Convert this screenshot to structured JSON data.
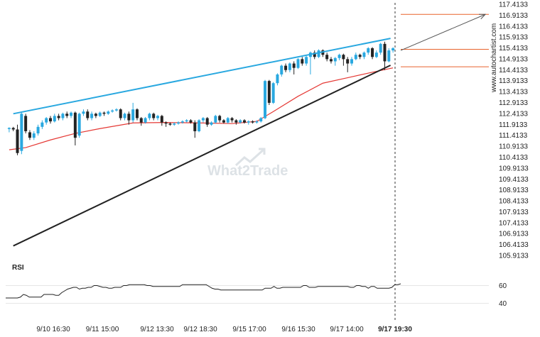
{
  "chart_data": [
    {
      "type": "candlestick",
      "y_ticks": [
        "117.4133",
        "116.9133",
        "116.4133",
        "115.9133",
        "115.4133",
        "114.9133",
        "114.4133",
        "113.9133",
        "113.4133",
        "112.9133",
        "112.4133",
        "111.9133",
        "111.4133",
        "110.9133",
        "110.4133",
        "109.9133",
        "109.4133",
        "108.9133",
        "108.4133",
        "107.9133",
        "107.4133",
        "106.9133",
        "106.4133",
        "105.9133"
      ],
      "x_ticks": [
        "9/10 16:30",
        "9/11 15:00",
        "9/12 13:30",
        "9/12 18:30",
        "9/15 17:00",
        "9/16 15:30",
        "9/17 14:00",
        "9/17 19:30"
      ],
      "ylim": [
        105.7,
        117.5
      ],
      "watermark": "What2Trade",
      "credit": "www.autochartist.com",
      "colors": {
        "up": "#29a8e0",
        "down": "#222222",
        "ma": "#e53935",
        "resistance": "#29a8e0",
        "support": "#222222",
        "target": "#e8622c",
        "projection": "#555555"
      },
      "candles": [
        [
          111.7,
          111.75,
          111.55,
          111.78
        ],
        [
          111.75,
          111.68,
          111.6,
          111.8
        ],
        [
          111.68,
          110.6,
          110.5,
          111.9
        ],
        [
          110.7,
          112.4,
          110.55,
          112.45
        ],
        [
          112.3,
          111.6,
          111.5,
          112.4
        ],
        [
          111.55,
          111.3,
          111.2,
          111.65
        ],
        [
          111.3,
          111.5,
          111.2,
          111.6
        ],
        [
          111.5,
          111.8,
          111.4,
          111.9
        ],
        [
          111.8,
          112.0,
          111.7,
          112.1
        ],
        [
          112.0,
          112.2,
          111.9,
          112.25
        ],
        [
          112.2,
          112.05,
          111.95,
          112.3
        ],
        [
          112.05,
          112.3,
          112.0,
          112.4
        ],
        [
          112.3,
          112.2,
          112.1,
          112.4
        ],
        [
          112.2,
          112.4,
          112.1,
          112.45
        ],
        [
          112.4,
          112.3,
          112.2,
          112.5
        ],
        [
          112.3,
          112.45,
          112.2,
          112.5
        ],
        [
          112.45,
          111.3,
          110.95,
          112.5
        ],
        [
          111.4,
          112.4,
          111.3,
          112.45
        ],
        [
          112.4,
          112.5,
          112.3,
          112.6
        ],
        [
          112.5,
          112.2,
          112.1,
          112.6
        ],
        [
          112.2,
          112.4,
          112.1,
          112.5
        ],
        [
          112.4,
          112.3,
          112.2,
          112.45
        ],
        [
          112.3,
          112.45,
          112.25,
          112.5
        ],
        [
          112.45,
          112.4,
          112.3,
          112.5
        ],
        [
          112.4,
          112.5,
          112.35,
          112.55
        ],
        [
          112.5,
          112.55,
          112.45,
          112.6
        ],
        [
          112.55,
          112.6,
          112.5,
          112.65
        ],
        [
          112.6,
          112.2,
          112.1,
          112.65
        ],
        [
          112.2,
          112.4,
          112.1,
          112.45
        ],
        [
          112.4,
          112.1,
          111.9,
          112.5
        ],
        [
          112.1,
          112.6,
          112.0,
          112.9
        ],
        [
          112.6,
          112.2,
          112.1,
          112.65
        ],
        [
          112.2,
          112.0,
          111.85,
          112.25
        ],
        [
          112.0,
          112.2,
          111.95,
          112.25
        ],
        [
          112.2,
          112.4,
          112.1,
          112.45
        ],
        [
          112.4,
          112.2,
          112.1,
          112.45
        ],
        [
          112.2,
          112.3,
          112.1,
          112.35
        ],
        [
          112.3,
          112.0,
          111.85,
          112.35
        ],
        [
          112.0,
          111.95,
          111.8,
          112.05
        ],
        [
          111.95,
          111.9,
          111.85,
          112.0
        ],
        [
          111.9,
          111.95,
          111.85,
          112.0
        ],
        [
          111.95,
          112.0,
          111.9,
          112.05
        ],
        [
          112.0,
          112.05,
          111.95,
          112.1
        ],
        [
          112.05,
          112.1,
          112.0,
          112.15
        ],
        [
          112.1,
          112.0,
          111.95,
          112.15
        ],
        [
          112.0,
          111.6,
          111.3,
          112.1
        ],
        [
          111.6,
          112.1,
          111.55,
          112.15
        ],
        [
          112.1,
          112.2,
          112.0,
          112.25
        ],
        [
          112.2,
          111.9,
          111.8,
          112.25
        ],
        [
          111.9,
          112.0,
          111.85,
          112.05
        ],
        [
          112.0,
          112.3,
          111.95,
          112.35
        ],
        [
          112.3,
          112.1,
          112.0,
          112.35
        ],
        [
          112.1,
          112.0,
          111.95,
          112.15
        ],
        [
          112.0,
          112.2,
          111.95,
          112.25
        ],
        [
          112.2,
          112.1,
          112.0,
          112.25
        ],
        [
          112.1,
          112.0,
          111.9,
          112.15
        ],
        [
          112.0,
          112.1,
          111.95,
          112.15
        ],
        [
          112.1,
          112.0,
          111.95,
          112.15
        ],
        [
          112.0,
          112.05,
          111.9,
          112.1
        ],
        [
          112.05,
          112.0,
          111.95,
          112.1
        ],
        [
          112.0,
          112.05,
          111.95,
          112.1
        ],
        [
          112.05,
          112.2,
          112.0,
          112.25
        ],
        [
          112.2,
          113.9,
          112.15,
          113.95
        ],
        [
          113.9,
          112.9,
          112.8,
          113.95
        ],
        [
          112.9,
          113.8,
          112.85,
          113.85
        ],
        [
          113.8,
          114.2,
          113.7,
          114.25
        ],
        [
          114.2,
          114.6,
          114.1,
          114.65
        ],
        [
          114.6,
          114.4,
          114.3,
          114.7
        ],
        [
          114.4,
          114.7,
          114.3,
          114.75
        ],
        [
          114.7,
          114.5,
          114.2,
          114.8
        ],
        [
          114.5,
          114.9,
          114.45,
          114.95
        ],
        [
          114.9,
          114.7,
          114.6,
          115.0
        ],
        [
          114.7,
          115.0,
          114.6,
          115.05
        ],
        [
          115.0,
          115.2,
          114.2,
          115.25
        ],
        [
          115.2,
          115.0,
          114.9,
          115.3
        ],
        [
          115.0,
          115.3,
          114.95,
          115.35
        ],
        [
          115.3,
          115.1,
          115.0,
          115.35
        ],
        [
          115.1,
          114.9,
          114.8,
          115.2
        ],
        [
          114.9,
          114.8,
          114.7,
          115.0
        ],
        [
          114.8,
          114.95,
          114.6,
          115.0
        ],
        [
          114.95,
          115.1,
          114.85,
          115.15
        ],
        [
          115.1,
          114.9,
          114.6,
          115.15
        ],
        [
          114.9,
          114.7,
          114.3,
          115.0
        ],
        [
          114.7,
          114.9,
          114.6,
          115.0
        ],
        [
          114.9,
          115.1,
          114.85,
          115.2
        ],
        [
          115.1,
          115.0,
          114.9,
          115.15
        ],
        [
          115.0,
          115.2,
          114.9,
          115.25
        ],
        [
          115.2,
          115.4,
          115.1,
          115.45
        ],
        [
          115.4,
          115.0,
          114.9,
          115.45
        ],
        [
          115.0,
          115.2,
          114.95,
          115.3
        ],
        [
          115.2,
          115.6,
          115.1,
          115.65
        ],
        [
          115.6,
          114.8,
          114.4,
          115.7
        ],
        [
          114.8,
          115.3,
          114.75,
          115.4
        ],
        [
          115.3,
          115.4,
          115.2,
          115.45
        ]
      ],
      "ma": [
        [
          0,
          110.75
        ],
        [
          4,
          110.85
        ],
        [
          10,
          111.2
        ],
        [
          16,
          111.5
        ],
        [
          22,
          111.72
        ],
        [
          30,
          111.98
        ],
        [
          38,
          112.0
        ],
        [
          46,
          111.98
        ],
        [
          54,
          111.95
        ],
        [
          60,
          112.05
        ],
        [
          64,
          112.5
        ],
        [
          70,
          113.2
        ],
        [
          76,
          113.8
        ],
        [
          82,
          114.05
        ],
        [
          88,
          114.3
        ],
        [
          93,
          114.5
        ]
      ],
      "resistance": [
        [
          94.0,
          112.4
        ],
        [
          1.0,
          112.4
        ]
      ],
      "resistance_line": {
        "from": [
          1,
          112.4
        ],
        "to": [
          92.4,
          115.85
        ]
      },
      "support_line": {
        "from": [
          1,
          106.35
        ],
        "to": [
          92.4,
          114.62
        ]
      },
      "target_levels": [
        116.95,
        115.35,
        114.55
      ],
      "projection": {
        "from": [
          92.4,
          115.3
        ],
        "to": [
          112.0,
          116.95
        ]
      },
      "rsi": {
        "label": "RSI",
        "ticks": [
          "60",
          "40"
        ],
        "ylim": [
          30,
          70
        ],
        "values": [
          46,
          46,
          46,
          46,
          46,
          47,
          50,
          49,
          47,
          47,
          47,
          47,
          47,
          50,
          50,
          50,
          50,
          49,
          49,
          52,
          54,
          56,
          57,
          58,
          58,
          56,
          57,
          57,
          58,
          58,
          60,
          60,
          59,
          58,
          58,
          57,
          57,
          58,
          58,
          58,
          60,
          60,
          61,
          61,
          61,
          61,
          61,
          61,
          60,
          60,
          59,
          59,
          59,
          59,
          59,
          59,
          59,
          59,
          59,
          59,
          61,
          61,
          61,
          61,
          61,
          61,
          61,
          61,
          61,
          59,
          57,
          56,
          56,
          55,
          55,
          55,
          55,
          55,
          55,
          55,
          55,
          55,
          55,
          55,
          55,
          55,
          55,
          55,
          57,
          57,
          57,
          59,
          57,
          57,
          58,
          58,
          58,
          58,
          58,
          58,
          58,
          60,
          60,
          58,
          58,
          58,
          59,
          59,
          59,
          59,
          59,
          59,
          59,
          59,
          59,
          59,
          59,
          58,
          58,
          60,
          60,
          59,
          59,
          57,
          59,
          59,
          57,
          57,
          57,
          57,
          57,
          58,
          61,
          61,
          62
        ]
      }
    }
  ]
}
